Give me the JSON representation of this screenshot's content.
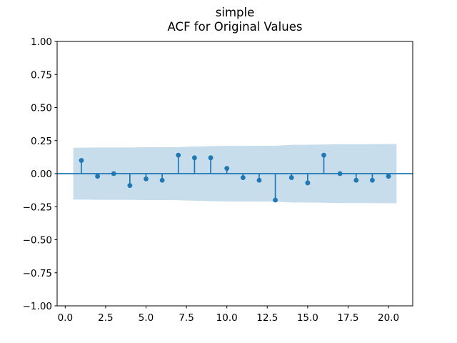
{
  "figure": {
    "title": "simple",
    "subtitle": "ACF for Original Values"
  },
  "colors": {
    "series": "#1f77b4",
    "band_fill": "#1f77b4",
    "band_opacity": 0.25,
    "axis": "#000000",
    "background": "#ffffff"
  },
  "chart_data": {
    "type": "stem",
    "title": "simple",
    "subtitle": "ACF for Original Values",
    "xlabel": "",
    "ylabel": "",
    "grid": false,
    "legend": null,
    "xlim": [
      -0.5,
      21.5
    ],
    "ylim": [
      -1.0,
      1.0
    ],
    "xticks": [
      0.0,
      2.5,
      5.0,
      7.5,
      10.0,
      12.5,
      15.0,
      17.5,
      20.0
    ],
    "xtick_labels": [
      "0.0",
      "2.5",
      "5.0",
      "7.5",
      "10.0",
      "12.5",
      "15.0",
      "17.5",
      "20.0"
    ],
    "yticks": [
      1.0,
      0.75,
      0.5,
      0.25,
      0.0,
      -0.25,
      -0.5,
      -0.75,
      -1.0
    ],
    "ytick_labels": [
      "1.00",
      "0.75",
      "0.50",
      "0.25",
      "0.00",
      "−0.25",
      "−0.50",
      "−0.75",
      "−1.00"
    ],
    "zero_line": 0.0,
    "lags": [
      1,
      2,
      3,
      4,
      5,
      6,
      7,
      8,
      9,
      10,
      11,
      12,
      13,
      14,
      15,
      16,
      17,
      18,
      19,
      20
    ],
    "acf_values": [
      0.1,
      -0.02,
      0.0,
      -0.09,
      -0.04,
      -0.05,
      0.14,
      0.12,
      0.12,
      0.04,
      -0.03,
      -0.05,
      -0.2,
      -0.03,
      -0.07,
      0.14,
      0.0,
      -0.05,
      -0.05,
      -0.02
    ],
    "confidence_band": {
      "x": [
        0.5,
        2,
        3,
        4,
        5,
        6,
        7,
        8,
        9,
        10,
        11,
        12,
        13,
        14,
        15,
        16,
        17,
        18,
        19,
        20.5
      ],
      "upper": [
        0.196,
        0.198,
        0.198,
        0.198,
        0.2,
        0.2,
        0.201,
        0.205,
        0.208,
        0.21,
        0.21,
        0.211,
        0.211,
        0.218,
        0.219,
        0.22,
        0.223,
        0.223,
        0.223,
        0.224
      ],
      "lower": [
        -0.196,
        -0.198,
        -0.198,
        -0.198,
        -0.2,
        -0.2,
        -0.201,
        -0.205,
        -0.208,
        -0.21,
        -0.21,
        -0.211,
        -0.211,
        -0.218,
        -0.219,
        -0.22,
        -0.223,
        -0.223,
        -0.223,
        -0.224
      ]
    }
  }
}
